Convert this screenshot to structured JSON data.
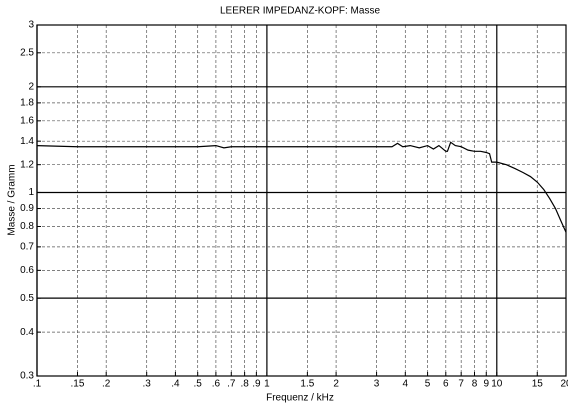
{
  "chart_data": {
    "type": "line",
    "title": "LEERER IMPEDANZ-KOPF: Masse",
    "xlabel": "Frequenz / kHz",
    "ylabel": "Masse / Gramm",
    "xscale": "log",
    "yscale": "log",
    "grid": true,
    "xlim": [
      0.1,
      20
    ],
    "ylim": [
      0.3,
      3
    ],
    "xticks": [
      {
        "value": 0.1,
        "label": ".1"
      },
      {
        "value": 0.15,
        "label": ".15"
      },
      {
        "value": 0.2,
        "label": ".2"
      },
      {
        "value": 0.3,
        "label": ".3"
      },
      {
        "value": 0.4,
        "label": ".4"
      },
      {
        "value": 0.5,
        "label": ".5"
      },
      {
        "value": 0.6,
        "label": ".6"
      },
      {
        "value": 0.7,
        "label": ".7"
      },
      {
        "value": 0.8,
        "label": ".8"
      },
      {
        "value": 0.9,
        "label": ".9"
      },
      1,
      1.5,
      2,
      3,
      4,
      5,
      6,
      7,
      8,
      9,
      10,
      15,
      20
    ],
    "yticks": [
      0.3,
      0.4,
      0.5,
      0.6,
      0.7,
      0.8,
      0.9,
      1,
      1.2,
      1.4,
      1.6,
      1.8,
      2,
      2.5,
      3
    ],
    "series": [
      {
        "name": "Masse",
        "color": "#000000",
        "x": [
          0.1,
          0.15,
          0.2,
          0.3,
          0.4,
          0.5,
          0.6,
          0.65,
          0.7,
          1,
          1.5,
          2,
          3,
          3.5,
          3.7,
          3.9,
          4.2,
          4.6,
          5,
          5.3,
          5.6,
          6,
          6.1,
          6.3,
          6.6,
          7,
          7.5,
          8,
          8.5,
          9,
          9.3,
          9.5,
          10,
          11,
          12,
          13,
          14,
          15,
          16,
          17,
          18,
          19,
          20
        ],
        "values": [
          1.36,
          1.35,
          1.35,
          1.35,
          1.35,
          1.35,
          1.36,
          1.34,
          1.35,
          1.35,
          1.35,
          1.35,
          1.35,
          1.35,
          1.38,
          1.35,
          1.36,
          1.34,
          1.36,
          1.33,
          1.36,
          1.31,
          1.31,
          1.39,
          1.36,
          1.35,
          1.32,
          1.31,
          1.31,
          1.3,
          1.29,
          1.22,
          1.22,
          1.2,
          1.17,
          1.14,
          1.11,
          1.07,
          1.02,
          0.96,
          0.9,
          0.83,
          0.77
        ]
      }
    ]
  }
}
